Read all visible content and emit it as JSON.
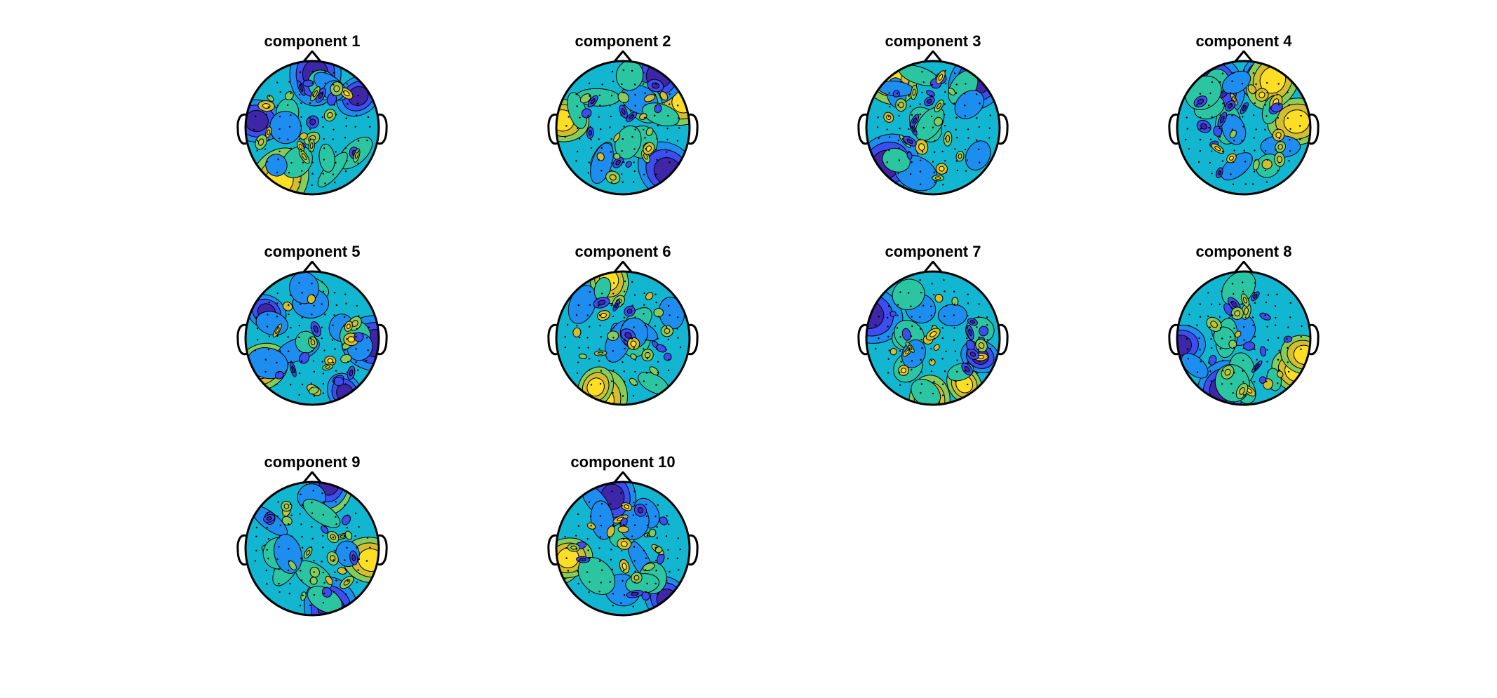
{
  "figure": {
    "components": [
      {
        "title": "component 1",
        "seed": 11,
        "blobs": [
          {
            "c": "yellow"
          },
          {
            "c": "blue"
          }
        ]
      },
      {
        "title": "component 2",
        "seed": 23
      },
      {
        "title": "component 3",
        "seed": 37
      },
      {
        "title": "component 4",
        "seed": 41
      },
      {
        "title": "component 5",
        "seed": 53
      },
      {
        "title": "component 6",
        "seed": 67
      },
      {
        "title": "component 7",
        "seed": 71
      },
      {
        "title": "component 8",
        "seed": 83
      },
      {
        "title": "component 9",
        "seed": 97
      },
      {
        "title": "component 10",
        "seed": 101
      }
    ],
    "colormap": [
      "#3e26a8",
      "#3d4ef1",
      "#1d8df0",
      "#13b6d0",
      "#2cc5a2",
      "#86cc5b",
      "#d3bd30",
      "#fdde27"
    ]
  }
}
